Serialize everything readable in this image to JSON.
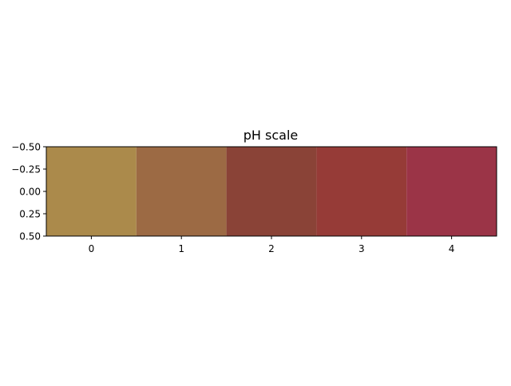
{
  "chart_data": {
    "type": "heatmap",
    "title": "pH scale",
    "xlabel": "",
    "ylabel": "",
    "x_categories": [
      "0",
      "1",
      "2",
      "3",
      "4"
    ],
    "xlim": [
      -0.5,
      4.5
    ],
    "ylim": [
      0.5,
      -0.5
    ],
    "y_ticks": [
      "−0.50",
      "−0.25",
      "0.00",
      "0.25",
      "0.50"
    ],
    "y_tick_values": [
      -0.5,
      -0.25,
      0.0,
      0.25,
      0.5
    ],
    "cells": [
      {
        "x": 0,
        "color": "#ab8a4b"
      },
      {
        "x": 1,
        "color": "#9c6a44"
      },
      {
        "x": 2,
        "color": "#8a4337"
      },
      {
        "x": 3,
        "color": "#963b37"
      },
      {
        "x": 4,
        "color": "#9b3447"
      }
    ],
    "grid": false,
    "legend": "none"
  }
}
